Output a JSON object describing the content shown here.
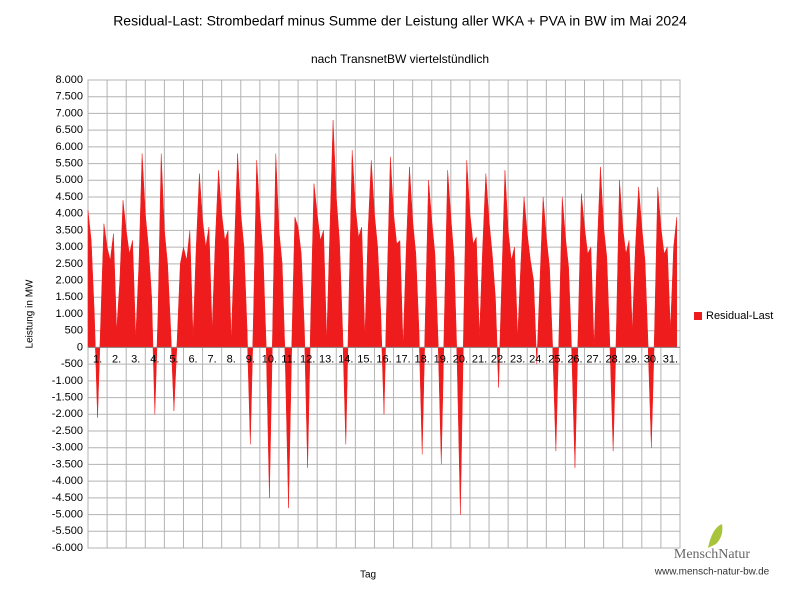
{
  "chart_data": {
    "type": "area",
    "title": "Residual-Last: Strombedarf minus Summe der  Leistung aller WKA + PVA in BW im Mai 2024",
    "subtitle": "nach TransnetBW viertelstündlich",
    "ylabel": "Leistung in MW",
    "xlabel": "Tag",
    "watermark": {
      "logo": "MenschNatur",
      "url": "www.mensch-natur-bw.de"
    },
    "legend": "right",
    "grid": true,
    "xlim": [
      1,
      32
    ],
    "ylim": [
      -6000,
      8000
    ],
    "yticks": [
      {
        "value": 8000,
        "label": "8.000"
      },
      {
        "value": 7500,
        "label": "7.500"
      },
      {
        "value": 7000,
        "label": "7.000"
      },
      {
        "value": 6500,
        "label": "6.500"
      },
      {
        "value": 6000,
        "label": "6.000"
      },
      {
        "value": 5500,
        "label": "5.500"
      },
      {
        "value": 5000,
        "label": "5.000"
      },
      {
        "value": 4500,
        "label": "4.500"
      },
      {
        "value": 4000,
        "label": "4.000"
      },
      {
        "value": 3500,
        "label": "3.500"
      },
      {
        "value": 3000,
        "label": "3.000"
      },
      {
        "value": 2500,
        "label": "2.500"
      },
      {
        "value": 2000,
        "label": "2.000"
      },
      {
        "value": 1500,
        "label": "1.500"
      },
      {
        "value": 1000,
        "label": "1.000"
      },
      {
        "value": 500,
        "label": "500"
      },
      {
        "value": 0,
        "label": "0"
      },
      {
        "value": -500,
        "label": "-500"
      },
      {
        "value": -1000,
        "label": "-1.000"
      },
      {
        "value": -1500,
        "label": "-1.500"
      },
      {
        "value": -2000,
        "label": "-2.000"
      },
      {
        "value": -2500,
        "label": "-2.500"
      },
      {
        "value": -3000,
        "label": "-3.000"
      },
      {
        "value": -3500,
        "label": "-3.500"
      },
      {
        "value": -4000,
        "label": "-4.000"
      },
      {
        "value": -4500,
        "label": "-4.500"
      },
      {
        "value": -5000,
        "label": "-5.000"
      },
      {
        "value": -5500,
        "label": "-5.500"
      },
      {
        "value": -6000,
        "label": "-6.000"
      }
    ],
    "xticks": [
      {
        "value": 1.5,
        "label": "1."
      },
      {
        "value": 2.5,
        "label": "2."
      },
      {
        "value": 3.5,
        "label": "3."
      },
      {
        "value": 4.5,
        "label": "4."
      },
      {
        "value": 5.5,
        "label": "5."
      },
      {
        "value": 6.5,
        "label": "6."
      },
      {
        "value": 7.5,
        "label": "7."
      },
      {
        "value": 8.5,
        "label": "8."
      },
      {
        "value": 9.5,
        "label": "9."
      },
      {
        "value": 10.5,
        "label": "10."
      },
      {
        "value": 11.5,
        "label": "11."
      },
      {
        "value": 12.5,
        "label": "12."
      },
      {
        "value": 13.5,
        "label": "13."
      },
      {
        "value": 14.5,
        "label": "14."
      },
      {
        "value": 15.5,
        "label": "15."
      },
      {
        "value": 16.5,
        "label": "16."
      },
      {
        "value": 17.5,
        "label": "17."
      },
      {
        "value": 18.5,
        "label": "18."
      },
      {
        "value": 19.5,
        "label": "19."
      },
      {
        "value": 20.5,
        "label": "20."
      },
      {
        "value": 21.5,
        "label": "21."
      },
      {
        "value": 22.5,
        "label": "22."
      },
      {
        "value": 23.5,
        "label": "23."
      },
      {
        "value": 24.5,
        "label": "24."
      },
      {
        "value": 25.5,
        "label": "25."
      },
      {
        "value": 26.5,
        "label": "26."
      },
      {
        "value": 27.5,
        "label": "27."
      },
      {
        "value": 28.5,
        "label": "28."
      },
      {
        "value": 29.5,
        "label": "29."
      },
      {
        "value": 30.5,
        "label": "30."
      },
      {
        "value": 31.5,
        "label": "31."
      }
    ],
    "x": [
      1,
      1.167,
      1.333,
      1.5,
      1.667,
      1.833,
      2,
      2.167,
      2.333,
      2.5,
      2.667,
      2.833,
      3,
      3.167,
      3.333,
      3.5,
      3.667,
      3.833,
      4,
      4.167,
      4.333,
      4.5,
      4.667,
      4.833,
      5,
      5.167,
      5.333,
      5.5,
      5.667,
      5.833,
      6,
      6.167,
      6.333,
      6.5,
      6.667,
      6.833,
      7,
      7.167,
      7.333,
      7.5,
      7.667,
      7.833,
      8,
      8.167,
      8.333,
      8.5,
      8.667,
      8.833,
      9,
      9.167,
      9.333,
      9.5,
      9.667,
      9.833,
      10,
      10.167,
      10.333,
      10.5,
      10.667,
      10.833,
      11,
      11.167,
      11.333,
      11.5,
      11.667,
      11.833,
      12,
      12.167,
      12.333,
      12.5,
      12.667,
      12.833,
      13,
      13.167,
      13.333,
      13.5,
      13.667,
      13.833,
      14,
      14.167,
      14.333,
      14.5,
      14.667,
      14.833,
      15,
      15.167,
      15.333,
      15.5,
      15.667,
      15.833,
      16,
      16.167,
      16.333,
      16.5,
      16.667,
      16.833,
      17,
      17.167,
      17.333,
      17.5,
      17.667,
      17.833,
      18,
      18.167,
      18.333,
      18.5,
      18.667,
      18.833,
      19,
      19.167,
      19.333,
      19.5,
      19.667,
      19.833,
      20,
      20.167,
      20.333,
      20.5,
      20.667,
      20.833,
      21,
      21.167,
      21.333,
      21.5,
      21.667,
      21.833,
      22,
      22.167,
      22.333,
      22.5,
      22.667,
      22.833,
      23,
      23.167,
      23.333,
      23.5,
      23.667,
      23.833,
      24,
      24.167,
      24.333,
      24.5,
      24.667,
      24.833,
      25,
      25.167,
      25.333,
      25.5,
      25.667,
      25.833,
      26,
      26.167,
      26.333,
      26.5,
      26.667,
      26.833,
      27,
      27.167,
      27.333,
      27.5,
      27.667,
      27.833,
      28,
      28.167,
      28.333,
      28.5,
      28.667,
      28.833,
      29,
      29.167,
      29.333,
      29.5,
      29.667,
      29.833,
      30,
      30.167,
      30.333,
      30.5,
      30.667,
      30.833,
      31,
      31.167,
      31.333,
      31.5,
      31.667,
      31.833
    ],
    "series": [
      {
        "name": "Residual-Last",
        "color": "#ee1c1c",
        "values": [
          4100,
          3200,
          1000,
          -2100,
          800,
          3700,
          3000,
          2600,
          3400,
          500,
          2000,
          4400,
          3500,
          2800,
          3200,
          300,
          2500,
          5800,
          4000,
          3000,
          1500,
          -2000,
          1000,
          5800,
          3500,
          2500,
          500,
          -1900,
          200,
          2500,
          3000,
          2600,
          3500,
          300,
          3000,
          5200,
          3800,
          3000,
          3600,
          500,
          3200,
          5300,
          4000,
          3200,
          3500,
          200,
          3000,
          5800,
          4000,
          3000,
          500,
          -2900,
          1000,
          5600,
          4000,
          2800,
          0,
          -4500,
          500,
          5800,
          3500,
          2500,
          -500,
          -4800,
          0,
          3900,
          3600,
          2800,
          500,
          -3600,
          1000,
          4900,
          4000,
          3200,
          3500,
          200,
          3500,
          6800,
          4500,
          3200,
          500,
          -2900,
          1500,
          5900,
          4200,
          3300,
          3600,
          300,
          3500,
          5600,
          4000,
          3000,
          1000,
          -2000,
          2000,
          5700,
          4000,
          3100,
          3200,
          0,
          3000,
          5400,
          3800,
          2800,
          500,
          -3200,
          1000,
          5000,
          3800,
          2800,
          200,
          -3500,
          1000,
          5300,
          3900,
          2700,
          -500,
          -5000,
          500,
          5600,
          4000,
          3100,
          3300,
          300,
          3000,
          5200,
          3800,
          2800,
          1500,
          -1200,
          2000,
          5300,
          3500,
          2600,
          3000,
          300,
          2500,
          4500,
          3400,
          2600,
          2000,
          -500,
          2000,
          4500,
          3300,
          2400,
          0,
          -3100,
          500,
          4500,
          3300,
          2400,
          -200,
          -3600,
          500,
          4600,
          3600,
          2800,
          3000,
          0,
          3000,
          5400,
          3600,
          2700,
          0,
          -3100,
          500,
          5000,
          3600,
          2800,
          3200,
          500,
          3000,
          4800,
          3600,
          2600,
          0,
          -3000,
          500,
          4800,
          3600,
          2800,
          3000,
          500,
          3000,
          3900
        ]
      }
    ]
  }
}
